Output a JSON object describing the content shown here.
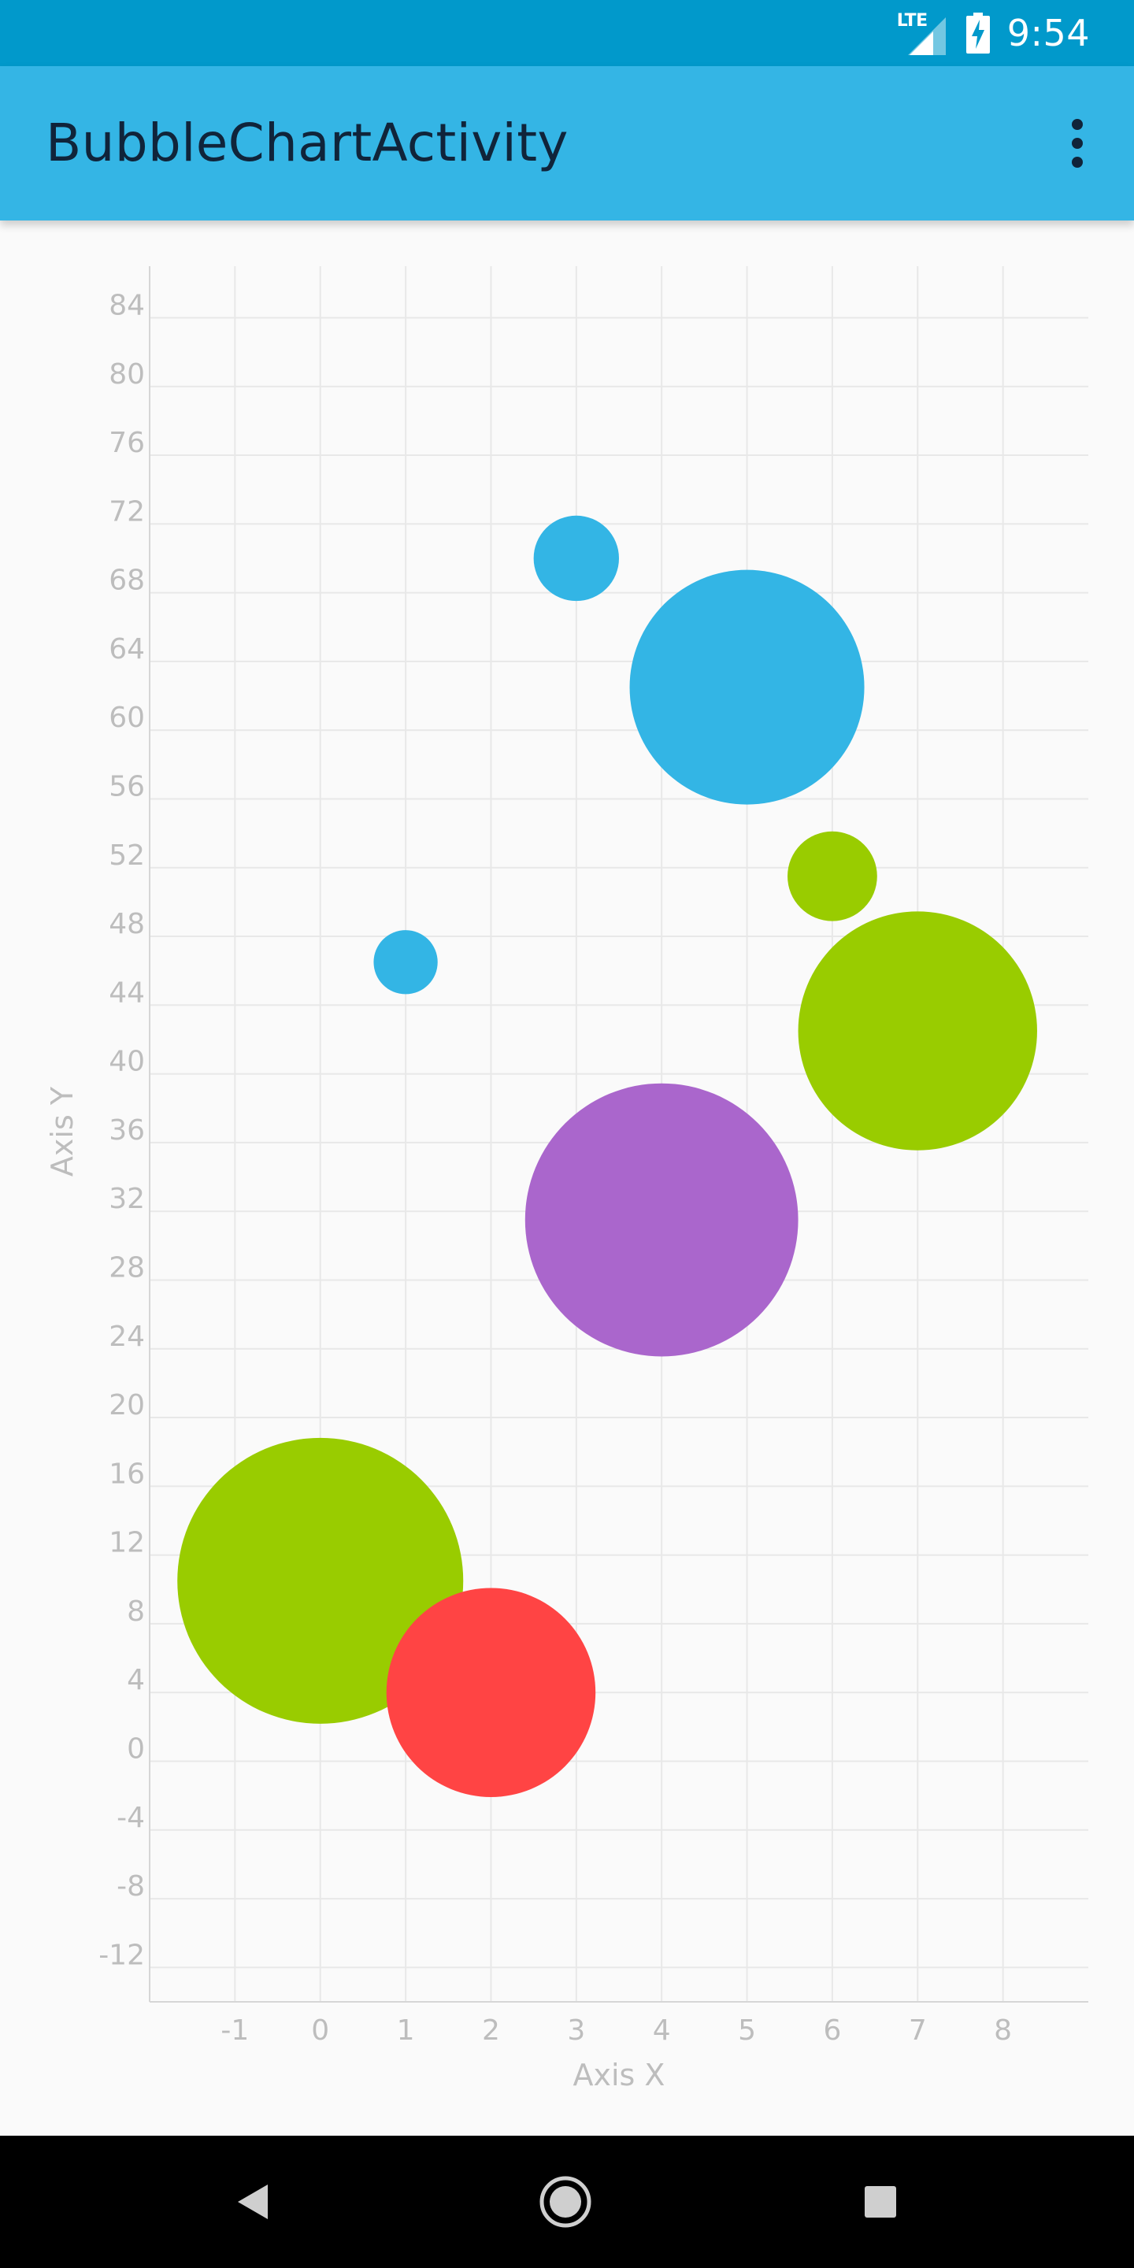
{
  "status_bar": {
    "time": "9:54",
    "network_label": "LTE",
    "icons": [
      "lte-signal-icon",
      "battery-charging-icon"
    ]
  },
  "app_bar": {
    "title": "BubbleChartActivity",
    "menu_icon": "more-vert-icon"
  },
  "chart_data": {
    "type": "scatter",
    "subtype": "bubble",
    "title": "",
    "xlabel": "Axis X",
    "ylabel": "Axis Y",
    "xlim": [
      -2,
      9
    ],
    "ylim": [
      -14,
      87
    ],
    "x_ticks": [
      -1,
      0,
      1,
      2,
      3,
      4,
      5,
      6,
      7,
      8
    ],
    "y_ticks": [
      -12,
      -8,
      -4,
      0,
      4,
      8,
      12,
      16,
      20,
      24,
      28,
      32,
      36,
      40,
      44,
      48,
      52,
      56,
      60,
      64,
      68,
      72,
      76,
      80,
      84
    ],
    "grid": true,
    "legend": "none",
    "points": [
      {
        "x": 0,
        "y": 10.5,
        "size": 3.35,
        "color": "#99cc00"
      },
      {
        "x": 1,
        "y": 46.5,
        "size": 0.75,
        "color": "#33b5e5"
      },
      {
        "x": 2,
        "y": 4,
        "size": 2.45,
        "color": "#ff4444"
      },
      {
        "x": 3,
        "y": 70,
        "size": 1,
        "color": "#33b5e5"
      },
      {
        "x": 4,
        "y": 31.5,
        "size": 3.2,
        "color": "#aa66cc"
      },
      {
        "x": 5,
        "y": 62.5,
        "size": 2.75,
        "color": "#33b5e5"
      },
      {
        "x": 6,
        "y": 51.5,
        "size": 1.05,
        "color": "#99cc00"
      },
      {
        "x": 7,
        "y": 42.5,
        "size": 2.8,
        "color": "#99cc00"
      }
    ],
    "colors": {
      "axis_text": "#bdbdbd",
      "grid": "#e8e8e8",
      "axis_line": "#d6d6d6"
    }
  },
  "nav_bar": {
    "back_icon": "back-triangle-icon",
    "home_icon": "home-circle-icon",
    "recents_icon": "recents-square-icon"
  }
}
